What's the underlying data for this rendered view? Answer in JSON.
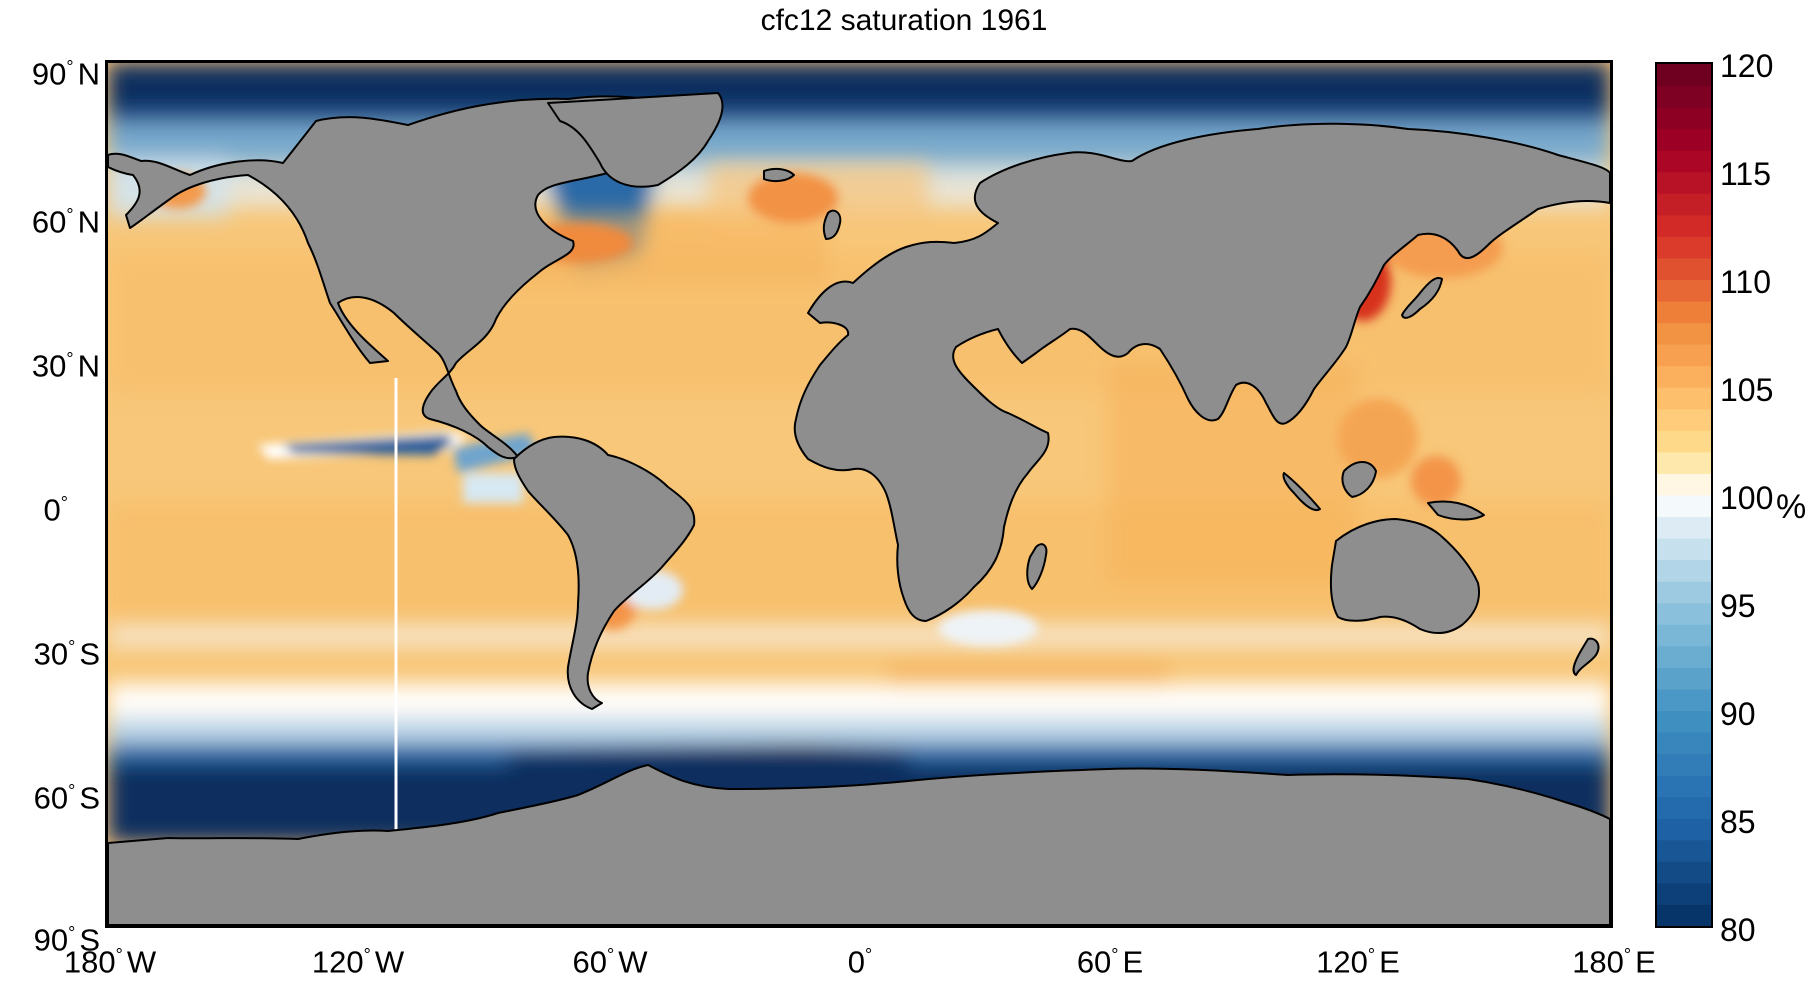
{
  "title": "cfc12 saturation 1961",
  "map": {
    "type": "heatmap",
    "projection": "equirectangular",
    "variable": "cfc12 saturation",
    "year": "1961",
    "lon_range": [
      -180,
      180
    ],
    "lat_range": [
      -90,
      90
    ],
    "land_color": "#8e8e8e",
    "coastline_color": "#000000",
    "lat_ticks": [
      {
        "value": 90,
        "num": "90",
        "hemi": "N"
      },
      {
        "value": 60,
        "num": "60",
        "hemi": "N"
      },
      {
        "value": 30,
        "num": "30",
        "hemi": "N"
      },
      {
        "value": 0,
        "num": "0",
        "hemi": ""
      },
      {
        "value": -30,
        "num": "30",
        "hemi": "S"
      },
      {
        "value": -60,
        "num": "60",
        "hemi": "S"
      },
      {
        "value": -90,
        "num": "90",
        "hemi": "S"
      }
    ],
    "lon_ticks": [
      {
        "value": -180,
        "num": "180",
        "hemi": "W"
      },
      {
        "value": -120,
        "num": "120",
        "hemi": "W"
      },
      {
        "value": -60,
        "num": "60",
        "hemi": "W"
      },
      {
        "value": 0,
        "num": "0",
        "hemi": ""
      },
      {
        "value": 60,
        "num": "60",
        "hemi": "E"
      },
      {
        "value": 120,
        "num": "120",
        "hemi": "E"
      },
      {
        "value": 180,
        "num": "180",
        "hemi": "E"
      }
    ]
  },
  "colorbar": {
    "unit": "%",
    "range": [
      80,
      120
    ],
    "ticks": [
      "120",
      "115",
      "110",
      "105",
      "100",
      "95",
      "90",
      "85",
      "80"
    ],
    "colors": [
      "#053061",
      "#2166ac",
      "#4393c3",
      "#92c5de",
      "#d1e5f0",
      "#ffffff",
      "#fee090",
      "#fdae61",
      "#f46d43",
      "#d73027",
      "#a50026",
      "#67001f"
    ]
  }
}
